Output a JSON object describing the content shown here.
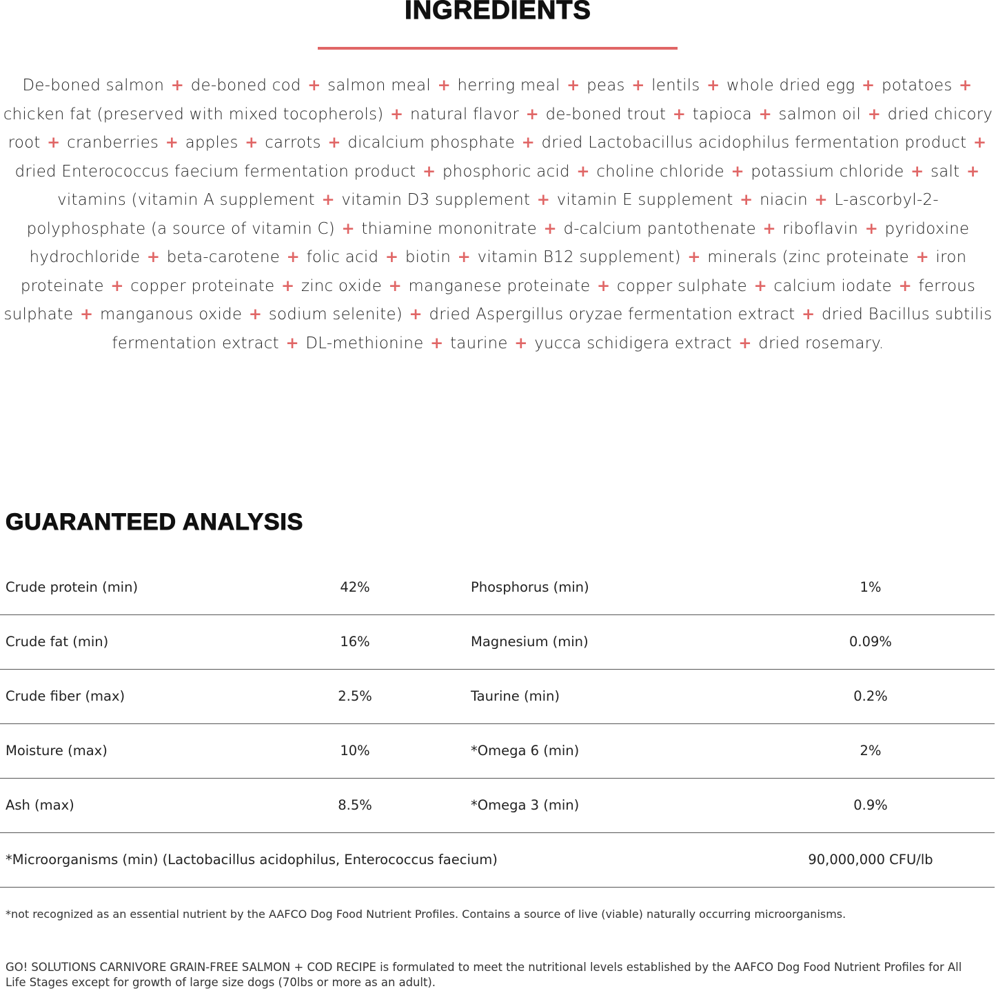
{
  "ingredients": {
    "title": "INGREDIENTS",
    "accent_color": "#e06666",
    "separator": "+",
    "items": [
      "De-boned salmon",
      "de-boned cod",
      "salmon meal",
      "herring meal",
      "peas",
      "lentils",
      "whole dried egg",
      "potatoes",
      "chicken fat (preserved with mixed tocopherols)",
      "natural flavor",
      "de-boned trout",
      "tapioca",
      "salmon oil",
      "dried chicory root",
      "cranberries",
      "apples",
      "carrots",
      "dicalcium phosphate",
      "dried Lactobacillus acidophilus fermentation product",
      "dried Enterococcus faecium fermentation product",
      "phosphoric acid",
      "choline chloride",
      "potassium chloride",
      "salt",
      "vitamins (vitamin A supplement",
      "vitamin D3 supplement",
      "vitamin E supplement",
      "niacin",
      "L-ascorbyl-2-polyphosphate (a source of vitamin C)",
      "thiamine mononitrate",
      "d-calcium pantothenate",
      "riboflavin",
      "pyridoxine hydrochloride",
      "beta-carotene",
      "folic acid",
      "biotin",
      "vitamin B12 supplement)",
      "minerals (zinc proteinate",
      "iron proteinate",
      "copper proteinate",
      "zinc oxide",
      "manganese proteinate",
      "copper sulphate",
      "calcium iodate",
      "ferrous sulphate",
      "manganous oxide",
      "sodium selenite)",
      "dried Aspergillus oryzae fermentation extract",
      "dried Bacillus subtilis fermentation extract",
      "DL-methionine",
      "taurine",
      "yucca schidigera extract",
      "dried rosemary."
    ]
  },
  "analysis": {
    "title": "GUARANTEED ANALYSIS",
    "rows": [
      {
        "label1": "Crude protein (min)",
        "value1": "42%",
        "label2": "Phosphorus (min)",
        "value2": "1%"
      },
      {
        "label1": "Crude fat (min)",
        "value1": "16%",
        "label2": "Magnesium (min)",
        "value2": "0.09%"
      },
      {
        "label1": "Crude fiber (max)",
        "value1": "2.5%",
        "label2": "Taurine (min)",
        "value2": "0.2%"
      },
      {
        "label1": "Moisture (max)",
        "value1": "10%",
        "label2": "*Omega 6 (min)",
        "value2": "2%"
      },
      {
        "label1": "Ash (max)",
        "value1": "8.5%",
        "label2": "*Omega 3 (min)",
        "value2": "0.9%"
      }
    ],
    "micro": {
      "label": "*Microorganisms (min) (Lactobacillus acidophilus, Enterococcus faecium)",
      "value": "90,000,000 CFU/lb"
    },
    "footnote": "*not recognized as an essential nutrient by the AAFCO Dog Food Nutrient Profiles. Contains a source of live (viable) naturally occurring microorganisms.",
    "statement": "GO! SOLUTIONS CARNIVORE GRAIN-FREE SALMON + COD RECIPE  is formulated to meet the nutritional levels established by the AAFCO Dog Food Nutrient Profiles for All Life Stages except for growth of large size dogs (70lbs or more as an adult)."
  }
}
